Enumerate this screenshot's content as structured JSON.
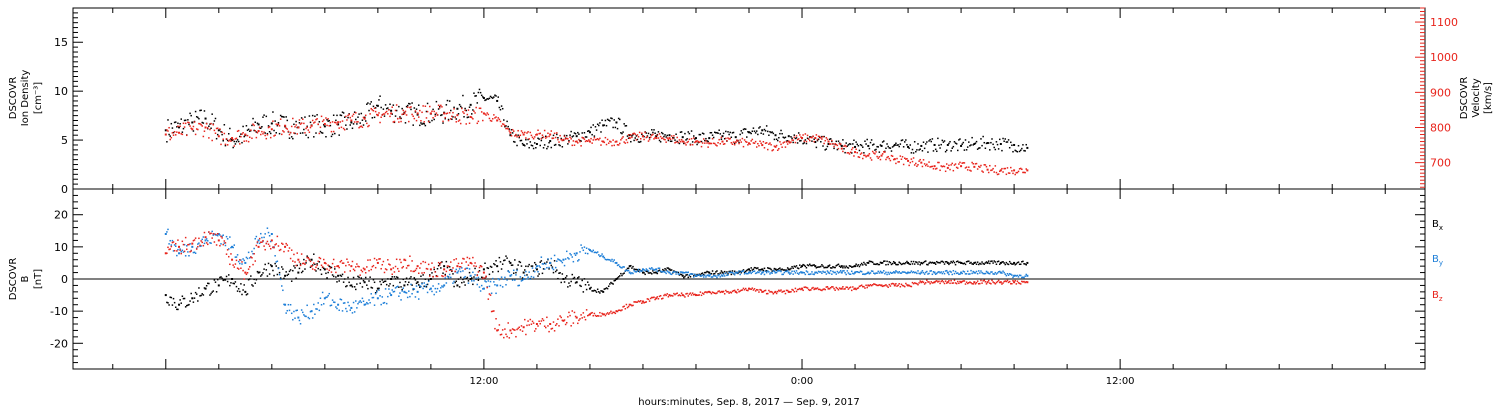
{
  "colors": {
    "density": "#000000",
    "velocity": "#e8241c",
    "bx": "#000000",
    "by": "#1e7fd8",
    "bz": "#e8241c"
  },
  "chart_data": [
    {
      "type": "scatter",
      "panel": "top",
      "ylabel": [
        "DSCOVR",
        "Ion Density",
        "[cm⁻³]"
      ],
      "ylim": [
        0,
        18.5
      ],
      "yticks": [
        0,
        5,
        10,
        15
      ],
      "ylabel_right": [
        "DSCOVR",
        "Velocity",
        "[km/s]"
      ],
      "ylim_right": [
        625,
        1140
      ],
      "yticks_right": [
        700,
        800,
        900,
        1000,
        1100
      ],
      "series": [
        {
          "axis": "left",
          "color": "#000000",
          "x": [
            0.0,
            0.5,
            1.0,
            1.5,
            2.0,
            2.5,
            3.0,
            3.5,
            4.0,
            4.5,
            5.0,
            5.5,
            6.0,
            6.5,
            7.0,
            7.5,
            8.0,
            8.5,
            9.0,
            9.5,
            10.0,
            10.5,
            11.0,
            11.5,
            12.0,
            12.5,
            13.0,
            13.5,
            14.0,
            14.5,
            15.0,
            15.5,
            16.0,
            16.5,
            17.0,
            17.5,
            18.0,
            18.5,
            19.0,
            19.5,
            20.0,
            20.5,
            21.0,
            21.5,
            22.0,
            22.5,
            23.0,
            23.5,
            24.0,
            24.5,
            25.0,
            25.5,
            26.0,
            26.5,
            27.0,
            27.5,
            28.0,
            28.5,
            29.0,
            29.5,
            30.0,
            30.5,
            31.0,
            31.5,
            32.0,
            32.5
          ],
          "y": [
            6.0,
            6.3,
            6.8,
            7.2,
            6.0,
            5.0,
            5.5,
            6.6,
            6.7,
            6.4,
            6.3,
            6.5,
            6.4,
            6.6,
            6.8,
            7.3,
            8.5,
            8.0,
            7.8,
            7.6,
            7.7,
            7.8,
            8.2,
            8.6,
            9.3,
            9.0,
            5.5,
            4.5,
            4.6,
            4.9,
            5.0,
            5.4,
            5.8,
            6.5,
            6.8,
            5.5,
            5.4,
            5.4,
            5.5,
            5.3,
            5.2,
            5.2,
            5.4,
            5.3,
            5.8,
            6.0,
            5.5,
            5.4,
            5.2,
            4.8,
            4.6,
            4.4,
            4.3,
            4.4,
            4.4,
            4.5,
            4.3,
            4.4,
            4.5,
            4.5,
            4.4,
            4.6,
            4.7,
            4.6,
            4.5,
            4.2
          ]
        },
        {
          "axis": "right",
          "color": "#e8241c",
          "x": [
            0.0,
            0.5,
            1.0,
            1.5,
            2.0,
            2.5,
            3.0,
            3.5,
            4.0,
            4.5,
            5.0,
            5.5,
            6.0,
            6.5,
            7.0,
            7.5,
            8.0,
            8.5,
            9.0,
            9.5,
            10.0,
            10.5,
            11.0,
            11.5,
            12.0,
            12.5,
            13.0,
            13.5,
            14.0,
            14.5,
            15.0,
            15.5,
            16.0,
            16.5,
            17.0,
            17.5,
            18.0,
            18.5,
            19.0,
            19.5,
            20.0,
            20.5,
            21.0,
            21.5,
            22.0,
            22.5,
            23.0,
            23.5,
            24.0,
            24.5,
            25.0,
            25.5,
            26.0,
            26.5,
            27.0,
            27.5,
            28.0,
            28.5,
            29.0,
            29.5,
            30.0,
            30.5,
            31.0,
            31.5,
            32.0,
            32.5
          ],
          "y": [
            780,
            785,
            795,
            800,
            775,
            770,
            780,
            790,
            795,
            805,
            800,
            805,
            810,
            815,
            820,
            825,
            835,
            840,
            840,
            840,
            840,
            840,
            835,
            830,
            840,
            820,
            785,
            780,
            780,
            780,
            765,
            760,
            760,
            760,
            760,
            770,
            775,
            770,
            770,
            760,
            760,
            755,
            760,
            758,
            755,
            750,
            745,
            760,
            770,
            770,
            760,
            740,
            730,
            720,
            720,
            710,
            705,
            700,
            690,
            685,
            690,
            688,
            680,
            678,
            678,
            678
          ]
        }
      ]
    },
    {
      "type": "scatter",
      "panel": "bottom",
      "ylabel": [
        "DSCOVR",
        "B",
        "[nT]"
      ],
      "ylim": [
        -28,
        28
      ],
      "yticks": [
        -20,
        -10,
        0,
        10,
        20
      ],
      "series": [
        {
          "name": "Bₓ",
          "color": "#000000",
          "x": [
            0.0,
            0.5,
            1.0,
            1.5,
            2.0,
            2.5,
            3.0,
            3.5,
            4.0,
            4.5,
            5.0,
            5.5,
            6.0,
            6.5,
            7.0,
            7.5,
            8.0,
            8.5,
            9.0,
            9.5,
            10.0,
            10.5,
            11.0,
            11.5,
            12.0,
            12.5,
            13.0,
            13.5,
            14.0,
            14.5,
            15.0,
            15.5,
            16.0,
            16.5,
            17.0,
            17.5,
            18.0,
            18.5,
            19.0,
            19.5,
            20.0,
            20.5,
            21.0,
            21.5,
            22.0,
            22.5,
            23.0,
            23.5,
            24.0,
            24.5,
            25.0,
            25.5,
            26.0,
            26.5,
            27.0,
            27.5,
            28.0,
            28.5,
            29.0,
            29.5,
            30.0,
            30.5,
            31.0,
            31.5,
            32.0,
            32.5
          ],
          "y": [
            -5,
            -8,
            -6,
            -3,
            -2,
            0,
            -4,
            2,
            4,
            1,
            2,
            6,
            3,
            1,
            -2,
            -1,
            -3,
            0,
            -2,
            -1,
            0,
            4,
            -2,
            0,
            3,
            4,
            5,
            2,
            3,
            5,
            0,
            -1,
            -3,
            -4,
            0,
            4,
            2,
            2,
            3,
            1,
            1,
            2,
            2,
            2,
            3,
            3,
            3,
            3,
            4,
            4,
            4,
            4,
            4,
            5,
            5,
            5,
            5,
            5,
            5,
            5,
            5,
            5,
            5,
            5,
            5,
            5
          ]
        },
        {
          "name": "Bᵧ",
          "color": "#1e7fd8",
          "x": [
            0.0,
            0.5,
            1.0,
            1.5,
            2.0,
            2.5,
            3.0,
            3.5,
            4.0,
            4.5,
            5.0,
            5.5,
            6.0,
            6.5,
            7.0,
            7.5,
            8.0,
            8.5,
            9.0,
            9.5,
            10.0,
            10.5,
            11.0,
            11.5,
            12.0,
            12.5,
            13.0,
            13.5,
            14.0,
            14.5,
            15.0,
            15.5,
            16.0,
            16.5,
            17.0,
            17.5,
            18.0,
            18.5,
            19.0,
            19.5,
            20.0,
            20.5,
            21.0,
            21.5,
            22.0,
            22.5,
            23.0,
            23.5,
            24.0,
            24.5,
            25.0,
            25.5,
            26.0,
            26.5,
            27.0,
            27.5,
            28.0,
            28.5,
            29.0,
            29.5,
            30.0,
            30.5,
            31.0,
            31.5,
            32.0,
            32.5
          ],
          "y": [
            14,
            8,
            10,
            12,
            14,
            10,
            5,
            12,
            14,
            -8,
            -12,
            -10,
            -6,
            -8,
            -9,
            -8,
            -6,
            -5,
            -4,
            -4,
            -3,
            -2,
            2,
            1,
            -3,
            -2,
            1,
            0,
            4,
            5,
            6,
            8,
            9,
            7,
            5,
            2,
            3,
            3,
            2,
            2,
            1,
            1,
            1,
            2,
            2,
            2,
            2,
            2,
            2,
            2,
            2,
            2,
            2,
            2,
            2,
            2,
            2,
            2,
            2,
            2,
            2,
            2,
            2,
            2,
            1,
            1
          ]
        },
        {
          "name": "B_z",
          "color": "#e8241c",
          "x": [
            0.0,
            0.5,
            1.0,
            1.5,
            2.0,
            2.5,
            3.0,
            3.5,
            4.0,
            4.5,
            5.0,
            5.5,
            6.0,
            6.5,
            7.0,
            7.5,
            8.0,
            8.5,
            9.0,
            9.5,
            10.0,
            10.5,
            11.0,
            11.5,
            12.0,
            12.5,
            13.0,
            13.5,
            14.0,
            14.5,
            15.0,
            15.5,
            16.0,
            16.5,
            17.0,
            17.5,
            18.0,
            18.5,
            19.0,
            19.5,
            20.0,
            20.5,
            21.0,
            21.5,
            22.0,
            22.5,
            23.0,
            23.5,
            24.0,
            24.5,
            25.0,
            25.5,
            26.0,
            26.5,
            27.0,
            27.5,
            28.0,
            28.5,
            29.0,
            29.5,
            30.0,
            30.5,
            31.0,
            31.5,
            32.0,
            32.5
          ],
          "y": [
            8,
            10,
            11,
            13,
            12,
            6,
            2,
            10,
            12,
            10,
            6,
            4,
            5,
            4,
            4,
            3,
            5,
            3,
            6,
            4,
            3,
            3,
            4,
            5,
            2,
            -16,
            -16,
            -15,
            -14,
            -14,
            -13,
            -12,
            -11,
            -11,
            -10,
            -8,
            -7,
            -6,
            -5,
            -5,
            -5,
            -4,
            -4,
            -4,
            -3,
            -4,
            -4,
            -4,
            -3,
            -3,
            -3,
            -3,
            -3,
            -2,
            -2,
            -2,
            -2,
            -1,
            -1,
            -1,
            -1,
            -1,
            -1,
            -1,
            -1,
            -1
          ]
        }
      ],
      "legend": [
        "Bₓ",
        "Bᵧ",
        "B_z"
      ]
    }
  ],
  "xaxis": {
    "xlim": [
      -3.5,
      47.5
    ],
    "ticks": [
      {
        "x": 12,
        "label": "12:00"
      },
      {
        "x": 24,
        "label": "0:00"
      },
      {
        "x": 36,
        "label": "12:00"
      }
    ],
    "label": "hours:minutes, Sep.  8, 2017 — Sep.  9, 2017"
  },
  "legend_labels": {
    "bx": "B",
    "bx_sub": "x",
    "by": "B",
    "by_sub": "y",
    "bz": "B",
    "bz_sub": "z"
  }
}
